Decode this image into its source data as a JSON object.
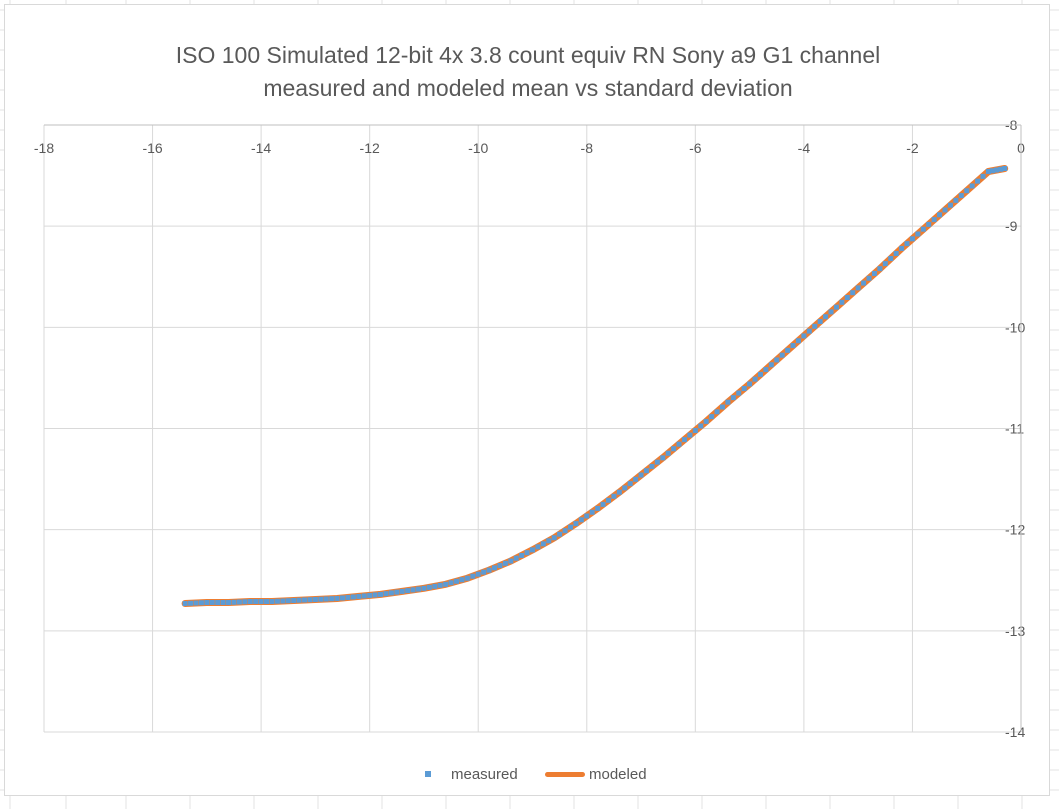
{
  "chart_data": {
    "type": "scatter",
    "title_lines": [
      "ISO 100 Simulated 12-bit 4x 3.8 count equiv RN Sony a9 G1 channel",
      "measured and modeled mean vs standard deviation"
    ],
    "xlabel": "",
    "ylabel": "",
    "xlim": [
      -18,
      0
    ],
    "ylim": [
      -14,
      -8
    ],
    "x_ticks": [
      "-18",
      "-16",
      "-14",
      "-12",
      "-10",
      "-8",
      "-6",
      "-4",
      "-2",
      "0"
    ],
    "y_ticks": [
      "-8",
      "-9",
      "-10",
      "-11",
      "-12",
      "-13",
      "-14"
    ],
    "grid": true,
    "legend_position": "bottom",
    "series": [
      {
        "name": "measured",
        "marker": "square",
        "color": "#5b9bd5",
        "x": [
          -15.4,
          -15.0,
          -14.6,
          -14.2,
          -13.8,
          -13.4,
          -13.0,
          -12.6,
          -12.2,
          -11.8,
          -11.4,
          -11.0,
          -10.6,
          -10.2,
          -9.8,
          -9.4,
          -9.0,
          -8.6,
          -8.2,
          -7.8,
          -7.4,
          -7.0,
          -6.6,
          -6.2,
          -5.8,
          -5.4,
          -5.0,
          -4.6,
          -4.2,
          -3.8,
          -3.4,
          -3.0,
          -2.6,
          -2.2,
          -1.8,
          -1.4,
          -1.0,
          -0.6,
          -0.3
        ],
        "y": [
          -12.73,
          -12.72,
          -12.72,
          -12.71,
          -12.71,
          -12.7,
          -12.69,
          -12.68,
          -12.66,
          -12.64,
          -12.61,
          -12.58,
          -12.54,
          -12.48,
          -12.4,
          -12.31,
          -12.2,
          -12.08,
          -11.94,
          -11.79,
          -11.63,
          -11.46,
          -11.29,
          -11.11,
          -10.93,
          -10.74,
          -10.56,
          -10.37,
          -10.18,
          -9.99,
          -9.8,
          -9.61,
          -9.42,
          -9.22,
          -9.03,
          -8.84,
          -8.65,
          -8.46,
          -8.43
        ]
      },
      {
        "name": "modeled",
        "marker": "line",
        "color": "#ed7d31",
        "x": [
          -15.4,
          -15.0,
          -14.6,
          -14.2,
          -13.8,
          -13.4,
          -13.0,
          -12.6,
          -12.2,
          -11.8,
          -11.4,
          -11.0,
          -10.6,
          -10.2,
          -9.8,
          -9.4,
          -9.0,
          -8.6,
          -8.2,
          -7.8,
          -7.4,
          -7.0,
          -6.6,
          -6.2,
          -5.8,
          -5.4,
          -5.0,
          -4.6,
          -4.2,
          -3.8,
          -3.4,
          -3.0,
          -2.6,
          -2.2,
          -1.8,
          -1.4,
          -1.0,
          -0.6,
          -0.3
        ],
        "y": [
          -12.73,
          -12.72,
          -12.72,
          -12.71,
          -12.71,
          -12.7,
          -12.69,
          -12.68,
          -12.66,
          -12.64,
          -12.61,
          -12.58,
          -12.54,
          -12.48,
          -12.4,
          -12.31,
          -12.2,
          -12.08,
          -11.94,
          -11.79,
          -11.63,
          -11.46,
          -11.29,
          -11.11,
          -10.93,
          -10.74,
          -10.56,
          -10.37,
          -10.18,
          -9.99,
          -9.8,
          -9.61,
          -9.42,
          -9.22,
          -9.03,
          -8.84,
          -8.65,
          -8.46,
          -8.43
        ]
      }
    ]
  },
  "legend": {
    "measured_label": "measured",
    "modeled_label": "modeled"
  },
  "colors": {
    "measured": "#5b9bd5",
    "modeled": "#ed7d31",
    "gridline": "#d9d9d9",
    "text": "#595959"
  }
}
